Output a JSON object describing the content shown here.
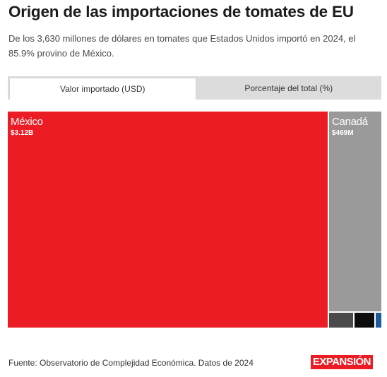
{
  "header": {
    "title": "Origen de las importaciones de tomates de EU",
    "subtitle": "De los 3,630 millones de dólares en tomates que Estados Unidos importó en 2024, el 85.9% provino de México."
  },
  "tabs": [
    {
      "label": "Valor importado (USD)",
      "active": true
    },
    {
      "label": "Porcentaje del total (%)",
      "active": false
    }
  ],
  "chart_data": {
    "type": "treemap",
    "unit": "USD",
    "total_usd_millions": 3630,
    "items": [
      {
        "name": "México",
        "label": "$3.12B",
        "value": 3120,
        "color": "#ec1c24"
      },
      {
        "name": "Canadá",
        "label": "$469M",
        "value": 469,
        "color": "#9a9a9a"
      },
      {
        "name": "",
        "label": "",
        "value": 17,
        "color": "#4a4a4a"
      },
      {
        "name": "",
        "label": "",
        "value": 14,
        "color": "#0d0d0d"
      },
      {
        "name": "",
        "label": "",
        "value": 4,
        "color": "#1a5c99"
      }
    ]
  },
  "footer": {
    "source": "Fuente: Observatorio de Complejidad Económica. Datos de 2024",
    "logo": "EXPANSIÓN"
  }
}
